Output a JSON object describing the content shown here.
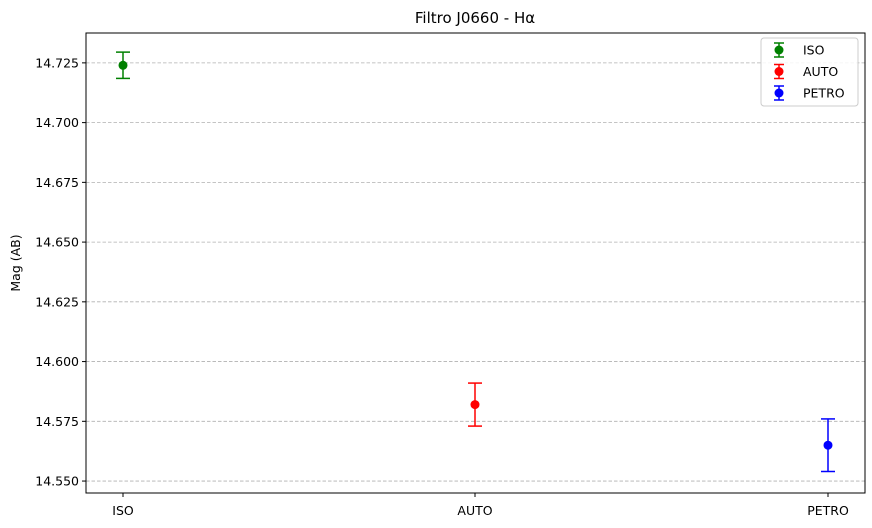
{
  "chart_data": {
    "type": "scatter",
    "title": "Filtro J0660 - Hα",
    "xlabel": "",
    "ylabel": "Mag (AB)",
    "categories": [
      "ISO",
      "AUTO",
      "PETRO"
    ],
    "ylim": [
      14.545,
      14.7375
    ],
    "yticks": [
      "14.550",
      "14.575",
      "14.600",
      "14.625",
      "14.650",
      "14.675",
      "14.700",
      "14.725"
    ],
    "grid": "horizontal dashed",
    "legend_position": "top-right",
    "series": [
      {
        "name": "ISO",
        "color": "#008000",
        "x": "ISO",
        "y": 14.724,
        "yerr": 0.0055
      },
      {
        "name": "AUTO",
        "color": "#ff0000",
        "x": "AUTO",
        "y": 14.582,
        "yerr": 0.009
      },
      {
        "name": "PETRO",
        "color": "#0000ff",
        "x": "PETRO",
        "y": 14.565,
        "yerr": 0.011
      }
    ]
  }
}
